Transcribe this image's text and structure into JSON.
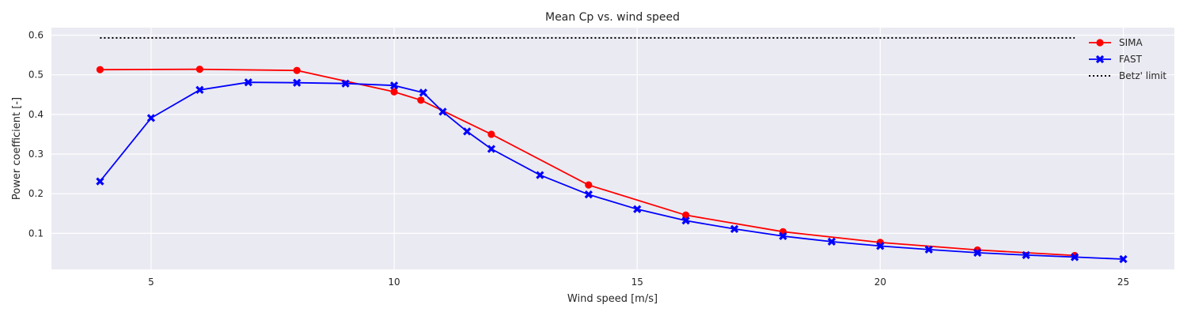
{
  "chart_data": {
    "type": "line",
    "title": "Mean Cp vs. wind speed",
    "xlabel": "Wind speed [m/s]",
    "ylabel": "Power coefficient [-]",
    "xlim": [
      2.95,
      26.05
    ],
    "ylim": [
      0.009,
      0.619
    ],
    "xticks": [
      5,
      10,
      15,
      20,
      25
    ],
    "yticks": [
      0.1,
      0.2,
      0.3,
      0.4,
      0.5,
      0.6
    ],
    "grid": true,
    "legend_position": "top-right",
    "colors": {
      "background": "#eaeaf2",
      "grid": "#ffffff",
      "text": "#262626"
    },
    "series": [
      {
        "name": "SIMA",
        "color": "#ff0000",
        "marker": "circle",
        "linestyle": "solid",
        "x": [
          3.95,
          6,
          8,
          10,
          10.55,
          12,
          14,
          16,
          18,
          20,
          22,
          24
        ],
        "y": [
          0.513,
          0.514,
          0.511,
          0.457,
          0.436,
          0.35,
          0.222,
          0.146,
          0.104,
          0.077,
          0.058,
          0.044
        ]
      },
      {
        "name": "FAST",
        "color": "#0000ff",
        "marker": "x",
        "linestyle": "solid",
        "x": [
          3.95,
          5,
          6,
          7,
          8,
          9,
          10,
          10.6,
          11,
          11.5,
          12,
          13,
          14,
          15,
          16,
          17,
          18,
          19,
          20,
          21,
          22,
          23,
          24,
          25
        ],
        "y": [
          0.231,
          0.391,
          0.462,
          0.481,
          0.48,
          0.478,
          0.473,
          0.455,
          0.407,
          0.357,
          0.313,
          0.247,
          0.198,
          0.161,
          0.132,
          0.111,
          0.093,
          0.079,
          0.068,
          0.059,
          0.051,
          0.045,
          0.04,
          0.035
        ]
      },
      {
        "name": "Betz' limit",
        "color": "#000000",
        "marker": "none",
        "linestyle": "dotted",
        "x": [
          3.95,
          24
        ],
        "y": [
          0.593,
          0.593
        ]
      }
    ]
  }
}
